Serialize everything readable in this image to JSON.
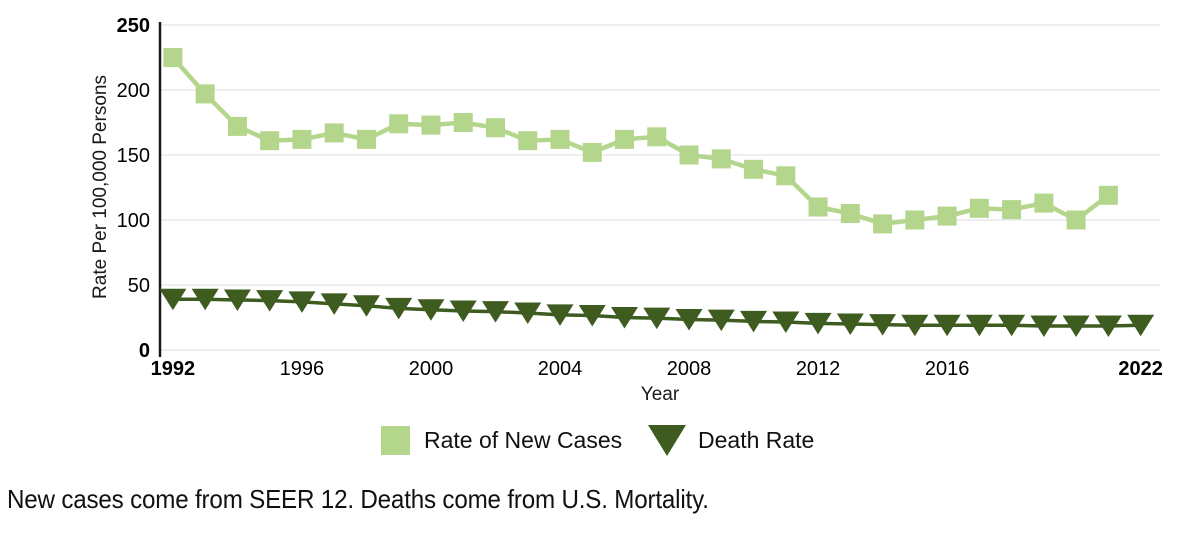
{
  "chart_data": {
    "type": "line",
    "title": "",
    "xlabel": "Year",
    "ylabel": "Rate Per 100,000 Persons",
    "xlim": [
      1991.6,
      2022.6
    ],
    "ylim": [
      0,
      250
    ],
    "x_ticks": [
      1992,
      1996,
      2000,
      2004,
      2008,
      2012,
      2016,
      2022
    ],
    "y_ticks": [
      0,
      50,
      100,
      150,
      200,
      250
    ],
    "grid": "horizontal",
    "legend_position": "bottom",
    "style": {
      "gridline_color": "#e8e8e8",
      "axis_color": "#1a1a1a",
      "tick_label_color": "#000000"
    },
    "series": [
      {
        "name": "Rate of New Cases",
        "marker": "square",
        "color": "#b4d68c",
        "x": [
          1992,
          1993,
          1994,
          1995,
          1996,
          1997,
          1998,
          1999,
          2000,
          2001,
          2002,
          2003,
          2004,
          2005,
          2006,
          2007,
          2008,
          2009,
          2010,
          2011,
          2012,
          2013,
          2014,
          2015,
          2016,
          2017,
          2018,
          2019,
          2020,
          2021
        ],
        "values": [
          225,
          197,
          172,
          161,
          162,
          167,
          162,
          174,
          173,
          175,
          171,
          161,
          162,
          152,
          162,
          164,
          150,
          147,
          139,
          134,
          110,
          105,
          97,
          100,
          103,
          109,
          108,
          113,
          100,
          119
        ]
      },
      {
        "name": "Death Rate",
        "marker": "triangle-down",
        "color": "#3e5c20",
        "x": [
          1992,
          1993,
          1994,
          1995,
          1996,
          1997,
          1998,
          1999,
          2000,
          2001,
          2002,
          2003,
          2004,
          2005,
          2006,
          2007,
          2008,
          2009,
          2010,
          2011,
          2012,
          2013,
          2014,
          2015,
          2016,
          2017,
          2018,
          2019,
          2020,
          2021,
          2022
        ],
        "values": [
          39,
          39,
          38.5,
          38,
          37,
          35.5,
          34,
          32,
          31,
          30,
          29.5,
          28.5,
          27,
          26.5,
          25,
          24.5,
          23.5,
          23,
          22,
          21.5,
          20.5,
          20,
          19.5,
          19,
          19,
          19,
          19,
          18.5,
          18.5,
          18.5,
          19
        ]
      }
    ]
  },
  "footnote": "New cases come from SEER 12. Deaths come from U.S. Mortality."
}
